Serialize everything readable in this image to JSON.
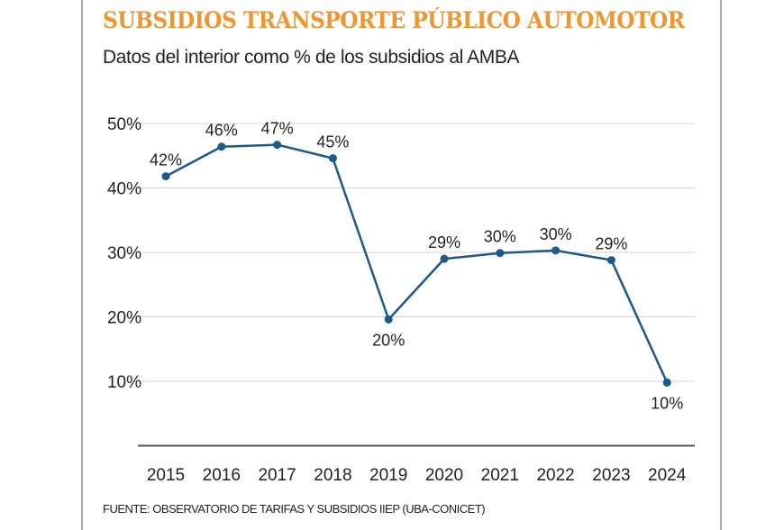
{
  "chart_data": {
    "type": "line",
    "title": "SUBSIDIOS TRANSPORTE PÚBLICO AUTOMOTOR",
    "subtitle": "Datos del interior como % de los subsidios al AMBA",
    "source": "FUENTE: OBSERVATORIO DE TARIFAS Y SUBSIDIOS IIEP (UBA-CONICET)",
    "xlabel": "",
    "ylabel": "",
    "ylim": [
      0,
      50
    ],
    "grid": true,
    "categories": [
      "2015",
      "2016",
      "2017",
      "2018",
      "2019",
      "2020",
      "2021",
      "2022",
      "2023",
      "2024"
    ],
    "yticks": [
      10,
      20,
      30,
      40,
      50
    ],
    "ytick_labels": [
      "10%",
      "20%",
      "30%",
      "40%",
      "50%"
    ],
    "series": [
      {
        "name": "Interior / AMBA",
        "values": [
          41.8,
          46.4,
          46.7,
          44.6,
          19.6,
          29.0,
          29.9,
          30.3,
          28.8,
          9.8
        ],
        "labels": [
          "42%",
          "46%",
          "47%",
          "45%",
          "20%",
          "29%",
          "30%",
          "30%",
          "29%",
          "10%"
        ],
        "label_below": [
          false,
          false,
          false,
          false,
          true,
          false,
          false,
          false,
          false,
          true
        ],
        "color": "#1c5a8c"
      }
    ],
    "colors": {
      "title": "#f0962e",
      "grid": "#d4d4d4",
      "axis": "#555555"
    }
  }
}
